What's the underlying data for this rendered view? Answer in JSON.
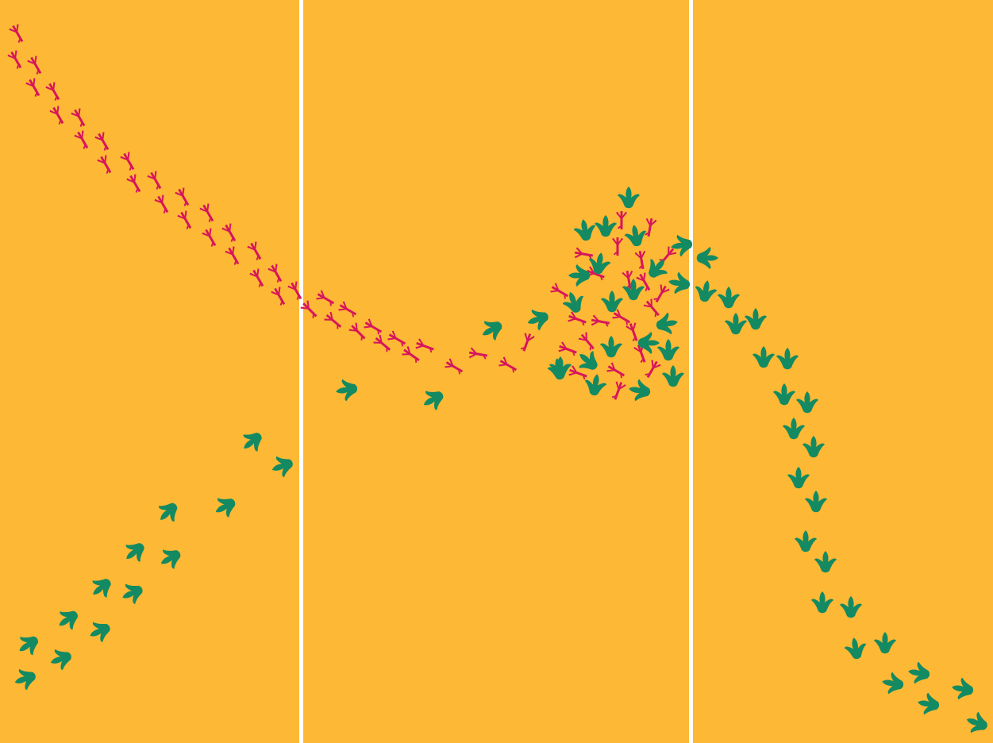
{
  "scene": {
    "background_color": "#FDB835",
    "divider_color": "#FFFFFF",
    "panel_count": 3,
    "large_track_color": "#138A62",
    "small_track_color": "#D6155C",
    "large_track_icon": "dinosaur-footprint-icon",
    "small_track_icon": "bird-footprint-icon"
  }
}
